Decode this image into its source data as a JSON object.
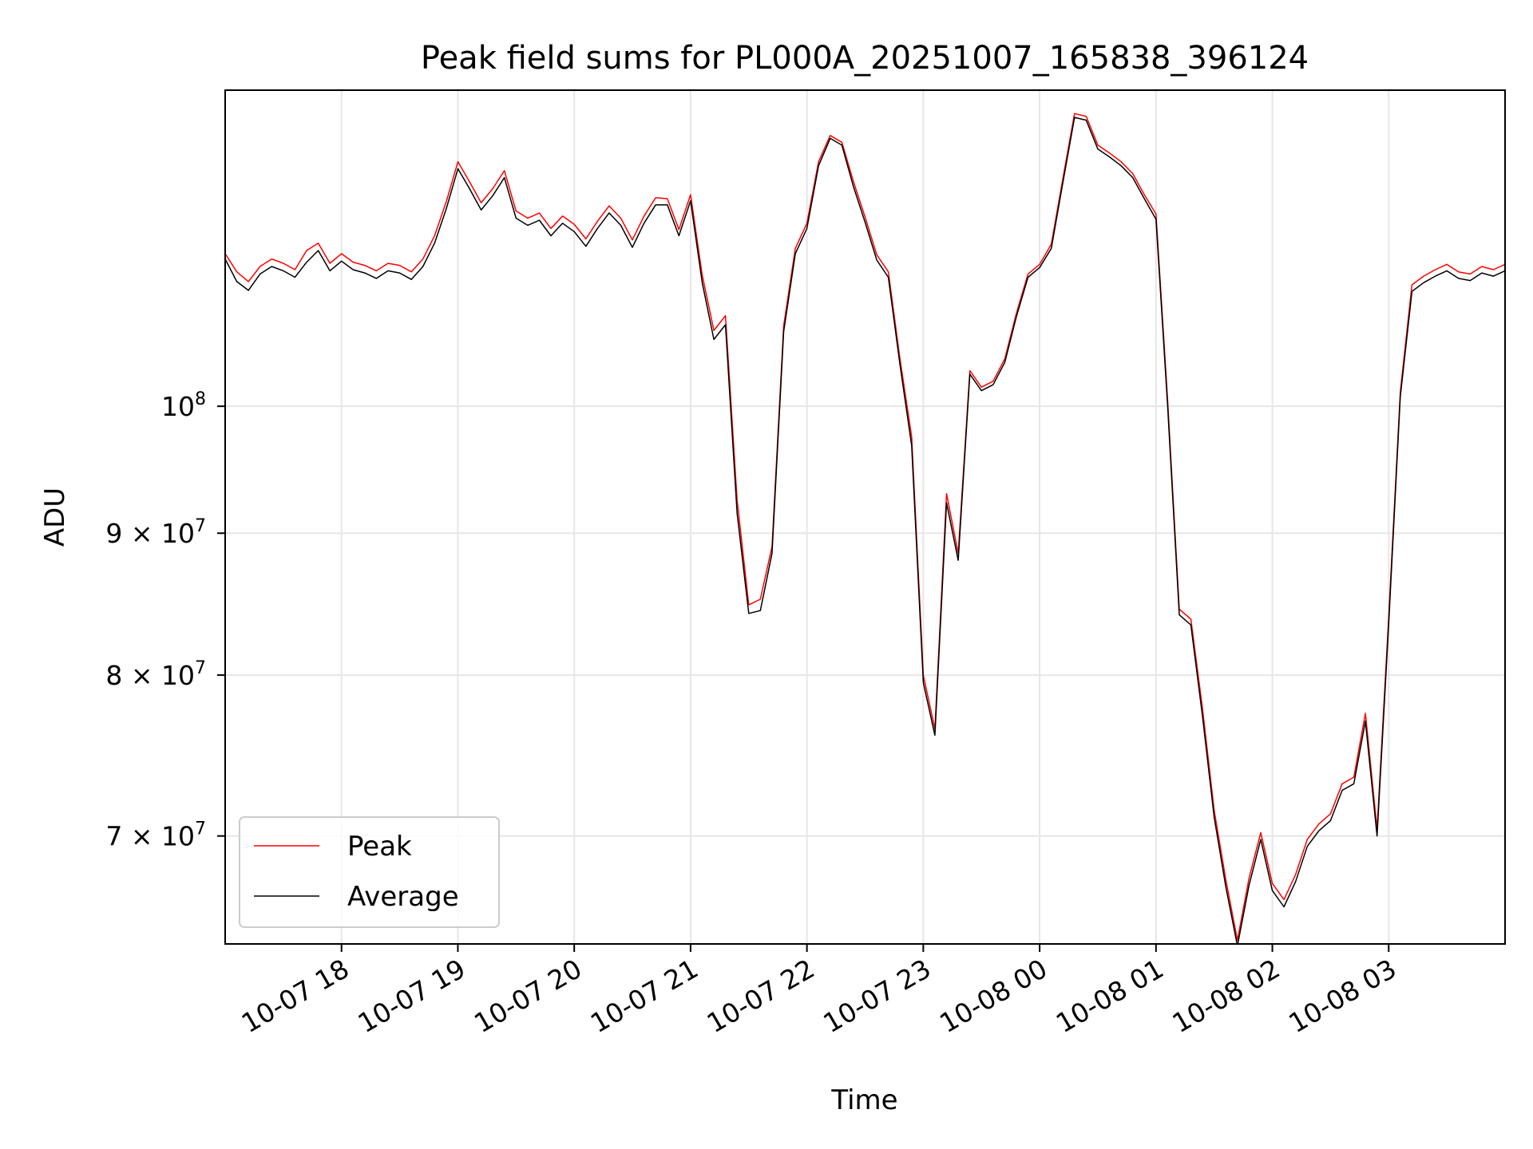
{
  "chart_data": {
    "type": "line",
    "title": "Peak field sums for PL000A_20251007_165838_396124",
    "xlabel": "Time",
    "ylabel": "ADU",
    "yscale": "log",
    "ylim": [
      64000000,
      130000000
    ],
    "xlim_hours": [
      -1.0,
      10.0
    ],
    "grid": true,
    "legend_position": "lower left",
    "x_ticks": [
      {
        "h": 0,
        "label": "10-07 18"
      },
      {
        "h": 1,
        "label": "10-07 19"
      },
      {
        "h": 2,
        "label": "10-07 20"
      },
      {
        "h": 3,
        "label": "10-07 21"
      },
      {
        "h": 4,
        "label": "10-07 22"
      },
      {
        "h": 5,
        "label": "10-07 23"
      },
      {
        "h": 6,
        "label": "10-08 00"
      },
      {
        "h": 7,
        "label": "10-08 01"
      },
      {
        "h": 8,
        "label": "10-08 02"
      },
      {
        "h": 9,
        "label": "10-08 03"
      }
    ],
    "y_ticks": [
      {
        "value": 70000000,
        "mantissa": "7",
        "base": "10",
        "exp": "7"
      },
      {
        "value": 80000000,
        "mantissa": "8",
        "base": "10",
        "exp": "7"
      },
      {
        "value": 90000000,
        "mantissa": "9",
        "base": "10",
        "exp": "7"
      },
      {
        "value": 100000000,
        "mantissa": "",
        "base": "10",
        "exp": "8"
      }
    ],
    "series": [
      {
        "name": "Peak",
        "color": "#ff0000",
        "x": [
          -1.0,
          -0.9,
          -0.8,
          -0.7,
          -0.6,
          -0.5,
          -0.4,
          -0.3,
          -0.2,
          -0.1,
          0.0,
          0.1,
          0.2,
          0.3,
          0.4,
          0.5,
          0.6,
          0.7,
          0.8,
          0.9,
          1.0,
          1.1,
          1.2,
          1.3,
          1.4,
          1.5,
          1.6,
          1.7,
          1.8,
          1.9,
          2.0,
          2.1,
          2.2,
          2.3,
          2.4,
          2.5,
          2.6,
          2.7,
          2.8,
          2.9,
          3.0,
          3.1,
          3.2,
          3.3,
          3.4,
          3.5,
          3.6,
          3.7,
          3.8,
          3.9,
          4.0,
          4.1,
          4.2,
          4.3,
          4.4,
          4.5,
          4.6,
          4.7,
          4.8,
          4.9,
          5.0,
          5.1,
          5.2,
          5.3,
          5.4,
          5.5,
          5.6,
          5.7,
          5.8,
          5.9,
          6.0,
          6.1,
          6.2,
          6.3,
          6.4,
          6.5,
          6.6,
          6.7,
          6.8,
          6.9,
          7.0,
          7.1,
          7.2,
          7.3,
          7.4,
          7.5,
          7.6,
          7.7,
          7.8,
          7.9,
          8.0,
          8.1,
          8.2,
          8.3,
          8.4,
          8.5,
          8.6,
          8.7,
          8.8,
          8.9,
          9.0,
          9.1,
          9.2,
          9.3,
          9.4,
          9.5,
          9.6,
          9.7,
          9.8,
          9.9,
          10.0
        ],
        "values": [
          113500000,
          111800000,
          110900000,
          112300000,
          113000000,
          112600000,
          112000000,
          113800000,
          114500000,
          112600000,
          113500000,
          112700000,
          112400000,
          111900000,
          112600000,
          112400000,
          111800000,
          113000000,
          115200000,
          118500000,
          122500000,
          120500000,
          118400000,
          119800000,
          121600000,
          117600000,
          116900000,
          117400000,
          115900000,
          117100000,
          116300000,
          114900000,
          116600000,
          118100000,
          116900000,
          114800000,
          117100000,
          118900000,
          118800000,
          115800000,
          119200000,
          111500000,
          106500000,
          107800000,
          92500000,
          84800000,
          85200000,
          89000000,
          106900000,
          114000000,
          116400000,
          122500000,
          125200000,
          124500000,
          120500000,
          117000000,
          113400000,
          111800000,
          104000000,
          97500000,
          80000000,
          76500000,
          93000000,
          88500000,
          103000000,
          101600000,
          102100000,
          104000000,
          108000000,
          111600000,
          112500000,
          114400000,
          120800000,
          127500000,
          127200000,
          124200000,
          123400000,
          122500000,
          121300000,
          119200000,
          117300000,
          100500000,
          84500000,
          83800000,
          77800000,
          71500000,
          67500000,
          64200000,
          67600000,
          70200000,
          67300000,
          66400000,
          67800000,
          69800000,
          70700000,
          71300000,
          73100000,
          73500000,
          77500000,
          70400000,
          84000000,
          101200000,
          110600000,
          111400000,
          112000000,
          112500000,
          111800000,
          111600000,
          112300000,
          112000000,
          112500000
        ]
      },
      {
        "name": "Average",
        "color": "#000000",
        "x": [
          -1.0,
          -0.9,
          -0.8,
          -0.7,
          -0.6,
          -0.5,
          -0.4,
          -0.3,
          -0.2,
          -0.1,
          0.0,
          0.1,
          0.2,
          0.3,
          0.4,
          0.5,
          0.6,
          0.7,
          0.8,
          0.9,
          1.0,
          1.1,
          1.2,
          1.3,
          1.4,
          1.5,
          1.6,
          1.7,
          1.8,
          1.9,
          2.0,
          2.1,
          2.2,
          2.3,
          2.4,
          2.5,
          2.6,
          2.7,
          2.8,
          2.9,
          3.0,
          3.1,
          3.2,
          3.3,
          3.4,
          3.5,
          3.6,
          3.7,
          3.8,
          3.9,
          4.0,
          4.1,
          4.2,
          4.3,
          4.4,
          4.5,
          4.6,
          4.7,
          4.8,
          4.9,
          5.0,
          5.1,
          5.2,
          5.3,
          5.4,
          5.5,
          5.6,
          5.7,
          5.8,
          5.9,
          6.0,
          6.1,
          6.2,
          6.3,
          6.4,
          6.5,
          6.6,
          6.7,
          6.8,
          6.9,
          7.0,
          7.1,
          7.2,
          7.3,
          7.4,
          7.5,
          7.6,
          7.7,
          7.8,
          7.9,
          8.0,
          8.1,
          8.2,
          8.3,
          8.4,
          8.5,
          8.6,
          8.7,
          8.8,
          8.9,
          9.0,
          9.1,
          9.2,
          9.3,
          9.4,
          9.5,
          9.6,
          9.7,
          9.8,
          9.9,
          10.0
        ],
        "values": [
          113000000,
          110900000,
          110100000,
          111600000,
          112300000,
          111900000,
          111300000,
          112700000,
          113800000,
          111900000,
          112800000,
          112000000,
          111700000,
          111200000,
          111900000,
          111700000,
          111100000,
          112300000,
          114500000,
          117800000,
          121800000,
          119800000,
          117700000,
          119100000,
          120900000,
          116900000,
          116200000,
          116700000,
          115200000,
          116400000,
          115600000,
          114200000,
          115900000,
          117400000,
          116200000,
          114100000,
          116400000,
          118200000,
          118200000,
          115200000,
          118600000,
          110800000,
          105700000,
          107000000,
          91500000,
          84200000,
          84400000,
          88500000,
          106400000,
          113500000,
          115900000,
          122100000,
          124900000,
          124200000,
          120000000,
          116500000,
          112900000,
          111300000,
          103500000,
          96800000,
          79500000,
          76100000,
          92300000,
          88000000,
          102700000,
          101300000,
          101800000,
          103700000,
          107700000,
          111300000,
          112200000,
          114000000,
          120400000,
          127100000,
          126800000,
          123800000,
          123000000,
          122100000,
          120900000,
          118800000,
          116800000,
          100000000,
          84100000,
          83400000,
          77300000,
          71100000,
          67100000,
          63900000,
          67200000,
          69800000,
          66900000,
          66000000,
          67400000,
          69400000,
          70300000,
          70900000,
          72700000,
          73100000,
          77000000,
          70000000,
          83500000,
          100800000,
          110000000,
          110800000,
          111400000,
          111900000,
          111200000,
          111000000,
          111700000,
          111400000,
          111900000
        ]
      }
    ]
  }
}
